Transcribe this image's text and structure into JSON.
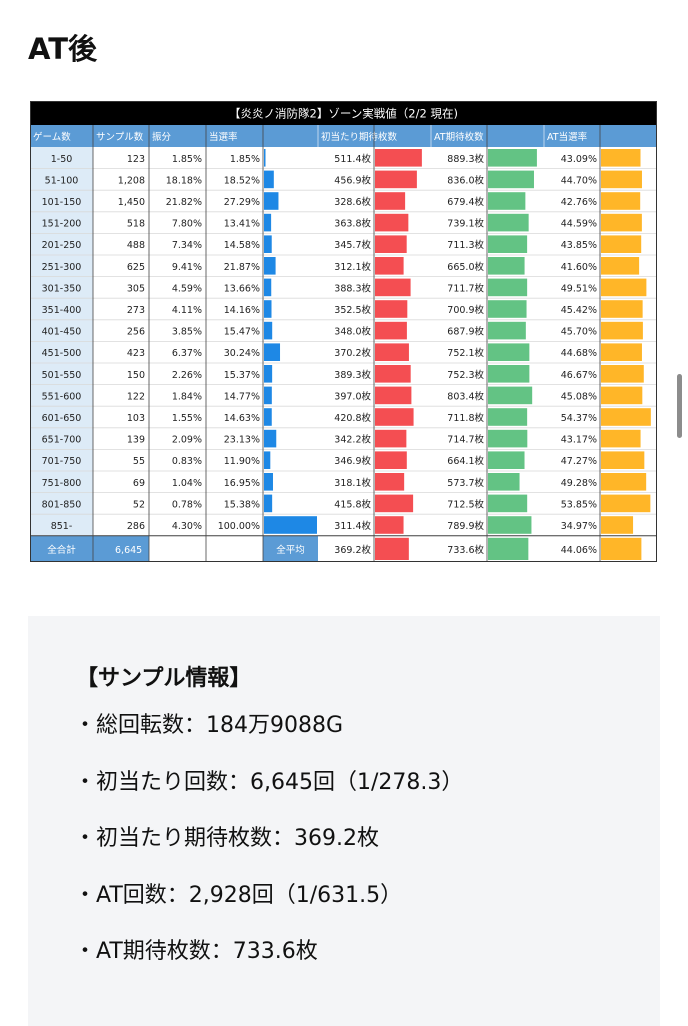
{
  "heading": "AT後",
  "chart_data": {
    "type": "table",
    "title": "【炎炎ノ消防隊2】ゾーン実戦値（2/2 現在)",
    "columns": [
      "ゲーム数",
      "サンプル数",
      "振分",
      "当選率",
      "",
      "初当たり期待枚数",
      "",
      "AT期待枚数",
      "",
      "AT当選率",
      ""
    ],
    "colors": {
      "title_bg": "#000000",
      "header_bg": "#5b9bd5",
      "first_col_bg": "#ddebf7",
      "hit_rate_bar": "#1e88e5",
      "first_hit_bar": "#f44e52",
      "at_expect_bar": "#63c384",
      "at_rate_bar": "#ffb628"
    },
    "rows": [
      {
        "range": "1-50",
        "samples": "123",
        "share": "1.85%",
        "hit_rate": "1.85%",
        "first_hit": "511.4枚",
        "at_expect": "889.3枚",
        "at_rate": "43.09%",
        "hit_v": 1.85,
        "first_v": 511.4,
        "at_v": 889.3,
        "atr_v": 43.09
      },
      {
        "range": "51-100",
        "samples": "1,208",
        "share": "18.18%",
        "hit_rate": "18.52%",
        "first_hit": "456.9枚",
        "at_expect": "836.0枚",
        "at_rate": "44.70%",
        "hit_v": 18.52,
        "first_v": 456.9,
        "at_v": 836.0,
        "atr_v": 44.7
      },
      {
        "range": "101-150",
        "samples": "1,450",
        "share": "21.82%",
        "hit_rate": "27.29%",
        "first_hit": "328.6枚",
        "at_expect": "679.4枚",
        "at_rate": "42.76%",
        "hit_v": 27.29,
        "first_v": 328.6,
        "at_v": 679.4,
        "atr_v": 42.76
      },
      {
        "range": "151-200",
        "samples": "518",
        "share": "7.80%",
        "hit_rate": "13.41%",
        "first_hit": "363.8枚",
        "at_expect": "739.1枚",
        "at_rate": "44.59%",
        "hit_v": 13.41,
        "first_v": 363.8,
        "at_v": 739.1,
        "atr_v": 44.59
      },
      {
        "range": "201-250",
        "samples": "488",
        "share": "7.34%",
        "hit_rate": "14.58%",
        "first_hit": "345.7枚",
        "at_expect": "711.3枚",
        "at_rate": "43.85%",
        "hit_v": 14.58,
        "first_v": 345.7,
        "at_v": 711.3,
        "atr_v": 43.85
      },
      {
        "range": "251-300",
        "samples": "625",
        "share": "9.41%",
        "hit_rate": "21.87%",
        "first_hit": "312.1枚",
        "at_expect": "665.0枚",
        "at_rate": "41.60%",
        "hit_v": 21.87,
        "first_v": 312.1,
        "at_v": 665.0,
        "atr_v": 41.6
      },
      {
        "range": "301-350",
        "samples": "305",
        "share": "4.59%",
        "hit_rate": "13.66%",
        "first_hit": "388.3枚",
        "at_expect": "711.7枚",
        "at_rate": "49.51%",
        "hit_v": 13.66,
        "first_v": 388.3,
        "at_v": 711.7,
        "atr_v": 49.51
      },
      {
        "range": "351-400",
        "samples": "273",
        "share": "4.11%",
        "hit_rate": "14.16%",
        "first_hit": "352.5枚",
        "at_expect": "700.9枚",
        "at_rate": "45.42%",
        "hit_v": 14.16,
        "first_v": 352.5,
        "at_v": 700.9,
        "atr_v": 45.42
      },
      {
        "range": "401-450",
        "samples": "256",
        "share": "3.85%",
        "hit_rate": "15.47%",
        "first_hit": "348.0枚",
        "at_expect": "687.9枚",
        "at_rate": "45.70%",
        "hit_v": 15.47,
        "first_v": 348.0,
        "at_v": 687.9,
        "atr_v": 45.7
      },
      {
        "range": "451-500",
        "samples": "423",
        "share": "6.37%",
        "hit_rate": "30.24%",
        "first_hit": "370.2枚",
        "at_expect": "752.1枚",
        "at_rate": "44.68%",
        "hit_v": 30.24,
        "first_v": 370.2,
        "at_v": 752.1,
        "atr_v": 44.68
      },
      {
        "range": "501-550",
        "samples": "150",
        "share": "2.26%",
        "hit_rate": "15.37%",
        "first_hit": "389.3枚",
        "at_expect": "752.3枚",
        "at_rate": "46.67%",
        "hit_v": 15.37,
        "first_v": 389.3,
        "at_v": 752.3,
        "atr_v": 46.67
      },
      {
        "range": "551-600",
        "samples": "122",
        "share": "1.84%",
        "hit_rate": "14.77%",
        "first_hit": "397.0枚",
        "at_expect": "803.4枚",
        "at_rate": "45.08%",
        "hit_v": 14.77,
        "first_v": 397.0,
        "at_v": 803.4,
        "atr_v": 45.08
      },
      {
        "range": "601-650",
        "samples": "103",
        "share": "1.55%",
        "hit_rate": "14.63%",
        "first_hit": "420.8枚",
        "at_expect": "711.8枚",
        "at_rate": "54.37%",
        "hit_v": 14.63,
        "first_v": 420.8,
        "at_v": 711.8,
        "atr_v": 54.37
      },
      {
        "range": "651-700",
        "samples": "139",
        "share": "2.09%",
        "hit_rate": "23.13%",
        "first_hit": "342.2枚",
        "at_expect": "714.7枚",
        "at_rate": "43.17%",
        "hit_v": 23.13,
        "first_v": 342.2,
        "at_v": 714.7,
        "atr_v": 43.17
      },
      {
        "range": "701-750",
        "samples": "55",
        "share": "0.83%",
        "hit_rate": "11.90%",
        "first_hit": "346.9枚",
        "at_expect": "664.1枚",
        "at_rate": "47.27%",
        "hit_v": 11.9,
        "first_v": 346.9,
        "at_v": 664.1,
        "atr_v": 47.27
      },
      {
        "range": "751-800",
        "samples": "69",
        "share": "1.04%",
        "hit_rate": "16.95%",
        "first_hit": "318.1枚",
        "at_expect": "573.7枚",
        "at_rate": "49.28%",
        "hit_v": 16.95,
        "first_v": 318.1,
        "at_v": 573.7,
        "atr_v": 49.28
      },
      {
        "range": "801-850",
        "samples": "52",
        "share": "0.78%",
        "hit_rate": "15.38%",
        "first_hit": "415.8枚",
        "at_expect": "712.5枚",
        "at_rate": "53.85%",
        "hit_v": 15.38,
        "first_v": 415.8,
        "at_v": 712.5,
        "atr_v": 53.85
      },
      {
        "range": "851-",
        "samples": "286",
        "share": "4.30%",
        "hit_rate": "100.00%",
        "first_hit": "311.4枚",
        "at_expect": "789.9枚",
        "at_rate": "34.97%",
        "hit_v": 100.0,
        "first_v": 311.4,
        "at_v": 789.9,
        "atr_v": 34.97
      }
    ],
    "totals": {
      "total_label": "全合計",
      "total_samples": "6,645",
      "avg_label": "全平均",
      "first_hit": "369.2枚",
      "at_expect": "733.6枚",
      "at_rate": "44.06%",
      "first_v": 369.2,
      "at_v": 733.6,
      "atr_v": 44.06
    }
  },
  "info": {
    "title": "【サンプル情報】",
    "bullet": "・",
    "items": [
      "総回転数：184万9088G",
      "初当たり回数：6,645回（1/278.3）",
      "初当たり期待枚数：369.2枚",
      "AT回数：2,928回（1/631.5）",
      "AT期待枚数：733.6枚"
    ]
  }
}
